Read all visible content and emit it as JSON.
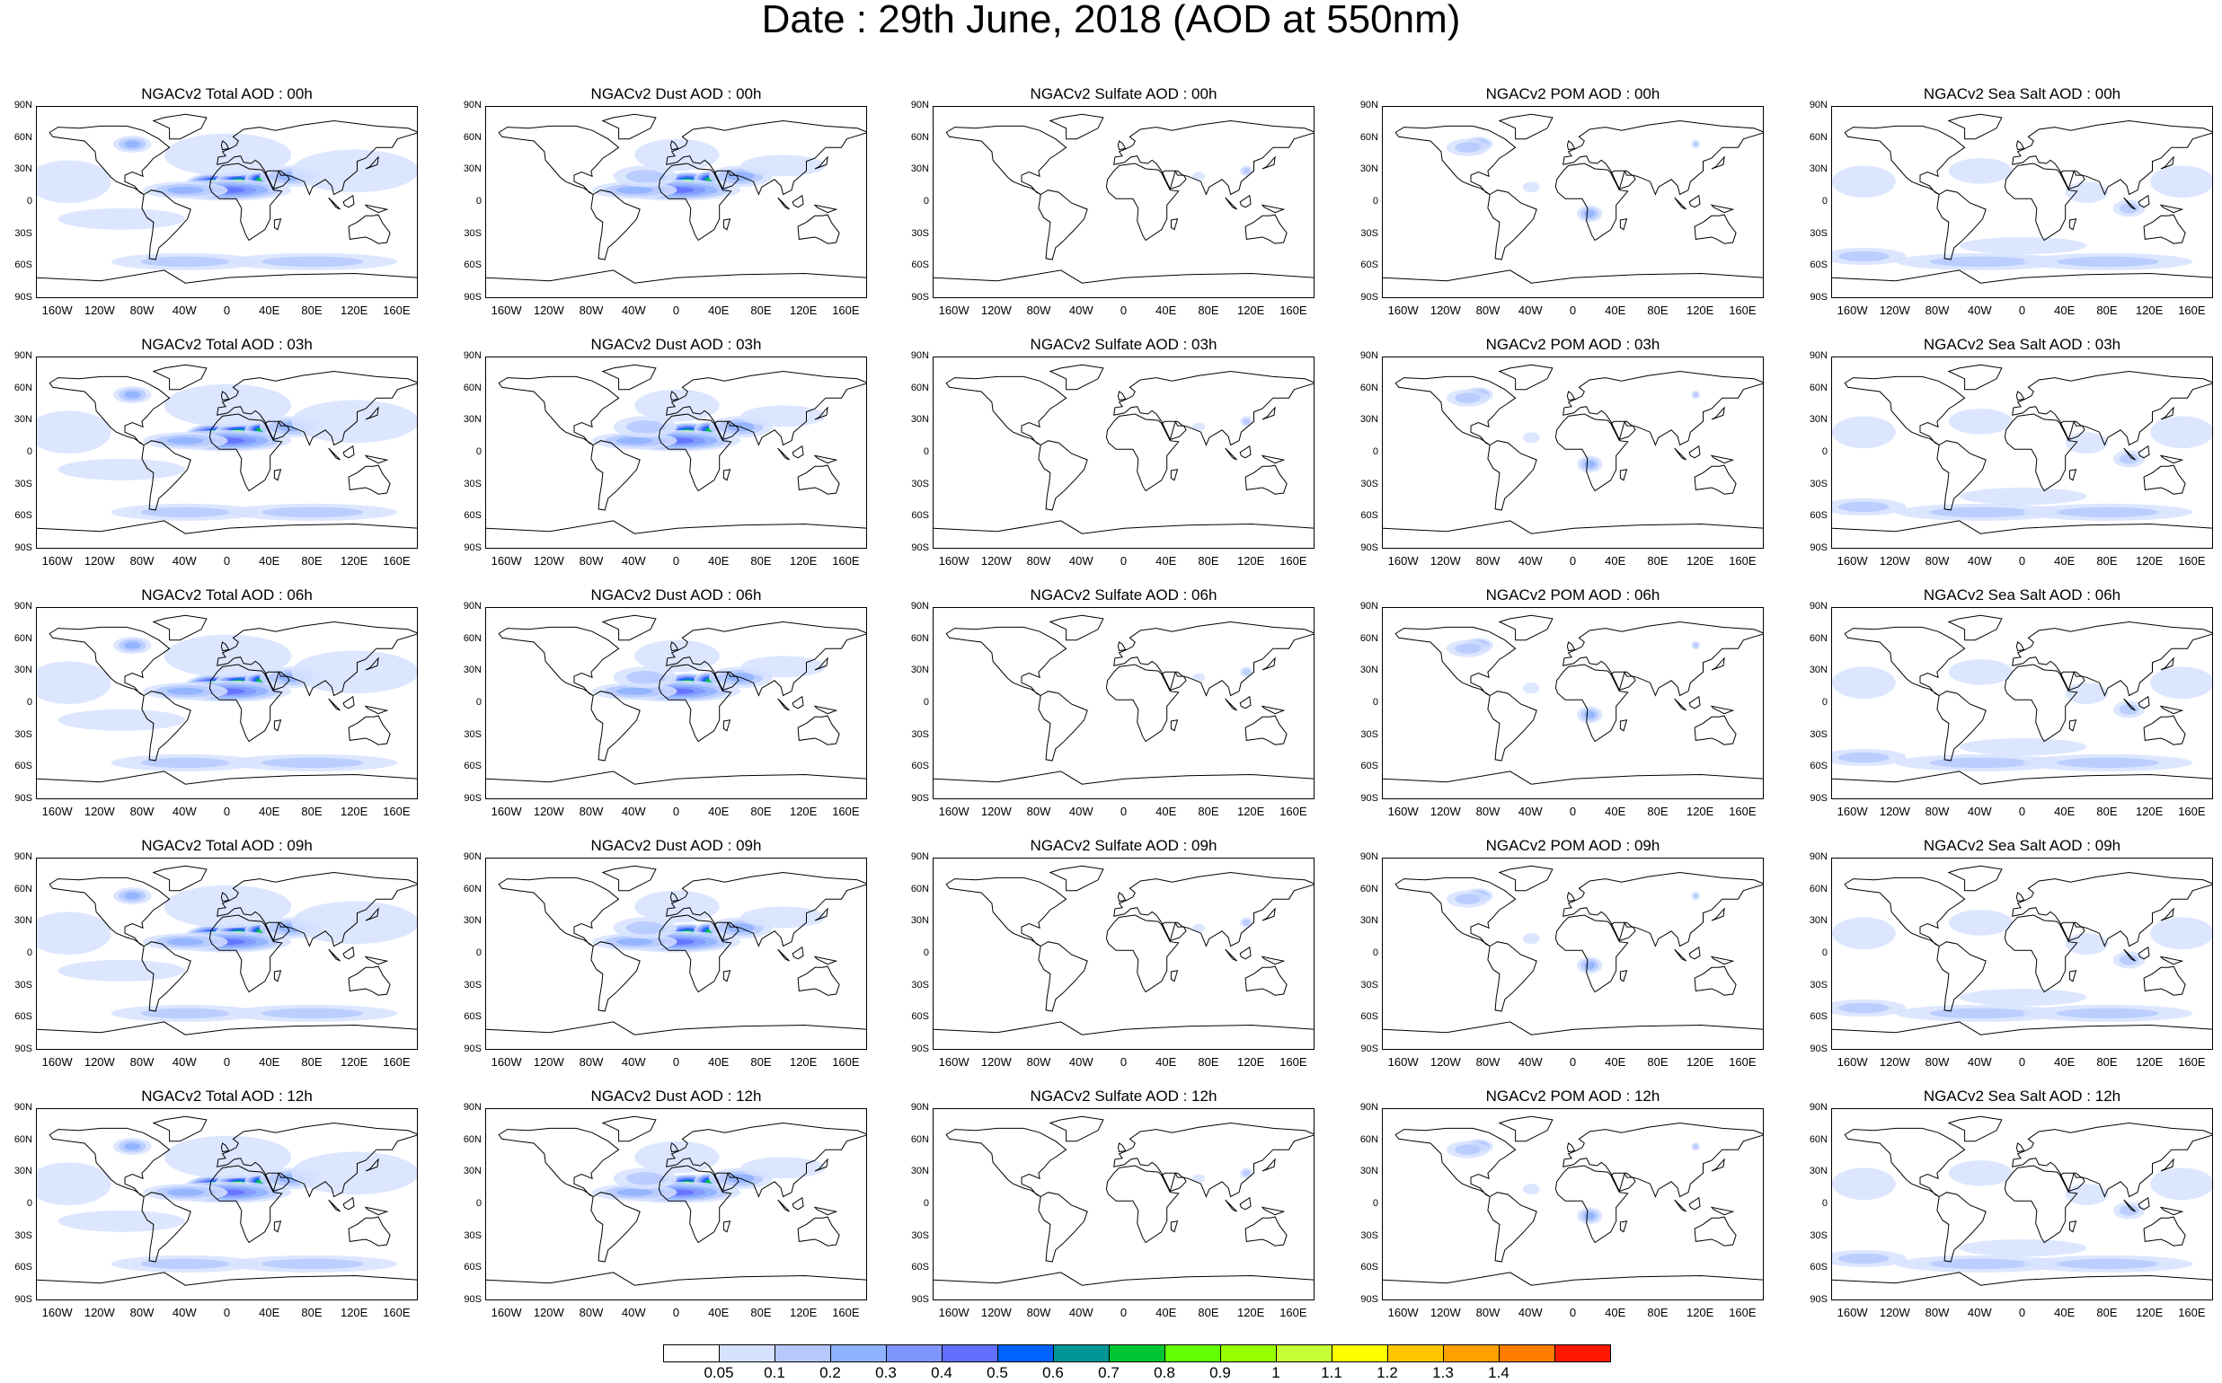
{
  "title": "Date : 29th June, 2018 (AOD at 550nm)",
  "columns": [
    {
      "key": "total",
      "label": "Total"
    },
    {
      "key": "dust",
      "label": "Dust"
    },
    {
      "key": "sulfate",
      "label": "Sulfate"
    },
    {
      "key": "pom",
      "label": "POM"
    },
    {
      "key": "seasalt",
      "label": "Sea Salt"
    }
  ],
  "panels": [
    [
      "NGACv2 Total AOD : 00h",
      "NGACv2 Dust AOD : 00h",
      "NGACv2 Sulfate AOD : 00h",
      "NGACv2 POM AOD : 00h",
      "NGACv2 Sea Salt AOD : 00h"
    ],
    [
      "NGACv2 Total AOD : 03h",
      "NGACv2 Dust AOD : 03h",
      "NGACv2 Sulfate AOD : 03h",
      "NGACv2 POM AOD : 03h",
      "NGACv2 Sea Salt AOD : 03h"
    ],
    [
      "NGACv2 Total AOD : 06h",
      "NGACv2 Dust AOD : 06h",
      "NGACv2 Sulfate AOD : 06h",
      "NGACv2 POM AOD : 06h",
      "NGACv2 Sea Salt AOD : 06h"
    ],
    [
      "NGACv2 Total AOD : 09h",
      "NGACv2 Dust AOD : 09h",
      "NGACv2 Sulfate AOD : 09h",
      "NGACv2 POM AOD : 09h",
      "NGACv2 Sea Salt  AOD : 09h"
    ],
    [
      "NGACv2 Total AOD  : 12h",
      "NGACv2 Dust AOD : 12h",
      "NGACv2 Sulfate AOD : 12h",
      "NGACv2 POM  AOD : 12h",
      "NGACv2 Sea Salt  AOD : 12h"
    ]
  ],
  "lat_ticks": [
    "90N",
    "60N",
    "30N",
    "0",
    "30S",
    "60S",
    "90S"
  ],
  "lon_ticks": [
    "160W",
    "120W",
    "80W",
    "40W",
    "0",
    "40E",
    "80E",
    "120E",
    "160E"
  ],
  "colorbar": {
    "labels": [
      "0.05",
      "0.1",
      "0.2",
      "0.3",
      "0.4",
      "0.5",
      "0.6",
      "0.7",
      "0.8",
      "0.9",
      "1",
      "1.1",
      "1.2",
      "1.3",
      "1.4"
    ],
    "colors": [
      "#ffffff",
      "#d6e2ff",
      "#b5c9ff",
      "#8eb2ff",
      "#7f96ff",
      "#6370ff",
      "#0063ff",
      "#009696",
      "#00c633",
      "#63ff00",
      "#96ff00",
      "#c6ff33",
      "#ffff00",
      "#ffc600",
      "#ffa000",
      "#ff7c00",
      "#ff1900"
    ]
  }
}
